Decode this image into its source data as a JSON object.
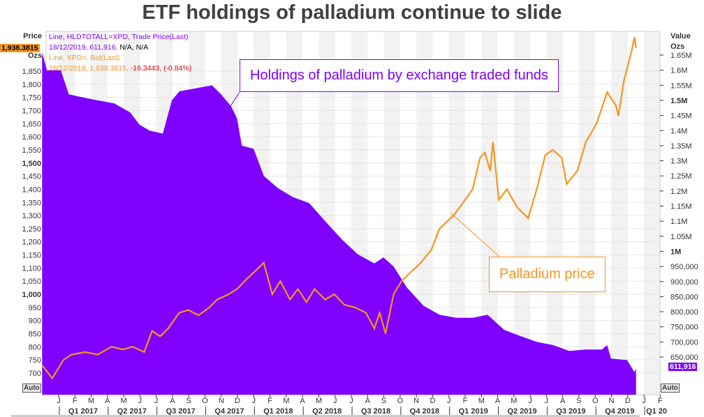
{
  "chart_data": {
    "type": "area+line",
    "title": "ETF holdings of palladium continue to slide",
    "left_axis": {
      "label": "Price",
      "unit": "Ozs",
      "range": [
        650,
        1950
      ],
      "ticks": [
        700,
        750,
        800,
        850,
        900,
        950,
        1000,
        1050,
        1100,
        1150,
        1200,
        1250,
        1300,
        1350,
        1400,
        1450,
        1500,
        1550,
        1600,
        1650,
        1700,
        1750,
        1800,
        1850
      ],
      "tick_labels": [
        "700",
        "750",
        "800",
        "850",
        "900",
        "950",
        "1,000",
        "1,050",
        "1,100",
        "1,150",
        "1,200",
        "1,250",
        "1,300",
        "1,350",
        "1,400",
        "1,450",
        "1,500",
        "1,550",
        "1,600",
        "1,650",
        "1,700",
        "1,750",
        "1,800",
        "1,850"
      ],
      "bold": [
        "1,000",
        "1,500"
      ]
    },
    "right_axis": {
      "label": "Value",
      "unit": "Ozs",
      "range": [
        540000,
        1720000
      ],
      "ticks": [
        650000,
        700000,
        750000,
        800000,
        850000,
        900000,
        950000,
        1000000,
        1050000,
        1100000,
        1150000,
        1200000,
        1250000,
        1300000,
        1350000,
        1400000,
        1450000,
        1500000,
        1550000,
        1600000,
        1650000
      ],
      "tick_labels": [
        "650,000",
        "700,000",
        "750,000",
        "800,000",
        "850,000",
        "900,000",
        "950,000",
        "1M",
        "1.05M",
        "1.1M",
        "1.15M",
        "1.2M",
        "1.25M",
        "1.3M",
        "1.35M",
        "1.4M",
        "1.45M",
        "1.5M",
        "1.55M",
        "1.6M",
        "1.65M"
      ],
      "bold": [
        "1M",
        "1.5M"
      ]
    },
    "months": [
      "J",
      "F",
      "M",
      "A",
      "M",
      "J",
      "J",
      "A",
      "S",
      "O",
      "N",
      "D",
      "J",
      "F",
      "M",
      "A",
      "M",
      "J",
      "J",
      "A",
      "S",
      "O",
      "N",
      "D",
      "J",
      "F",
      "M",
      "A",
      "M",
      "J",
      "J",
      "A",
      "S",
      "O",
      "N",
      "D",
      "J",
      "F"
    ],
    "quarters": [
      "Q1 2017",
      "Q2 2017",
      "Q3 2017",
      "Q4 2017",
      "Q1 2018",
      "Q2 2018",
      "Q3 2018",
      "Q4 2018",
      "Q1 2019",
      "Q2 2019",
      "Q3 2019",
      "Q4 2019",
      "Q1 20"
    ],
    "grid": true,
    "series": [
      {
        "name": "Line, HLDTOTALL=XPD, Trade Price(Last)",
        "type": "area",
        "axis": "right",
        "color": "#7f00ff",
        "points": [
          [
            "2016-12-01",
            1660000
          ],
          [
            "2016-12-10",
            1600000
          ],
          [
            "2017-01-05",
            1600000
          ],
          [
            "2017-01-20",
            1520000
          ],
          [
            "2017-02-15",
            1510000
          ],
          [
            "2017-03-15",
            1500000
          ],
          [
            "2017-04-15",
            1490000
          ],
          [
            "2017-05-15",
            1460000
          ],
          [
            "2017-06-01",
            1420000
          ],
          [
            "2017-06-20",
            1400000
          ],
          [
            "2017-07-15",
            1390000
          ],
          [
            "2017-08-01",
            1500000
          ],
          [
            "2017-08-15",
            1530000
          ],
          [
            "2017-09-15",
            1540000
          ],
          [
            "2017-10-15",
            1550000
          ],
          [
            "2017-11-01",
            1520000
          ],
          [
            "2017-11-20",
            1480000
          ],
          [
            "2017-12-01",
            1440000
          ],
          [
            "2017-12-10",
            1350000
          ],
          [
            "2018-01-01",
            1340000
          ],
          [
            "2018-01-20",
            1250000
          ],
          [
            "2018-02-15",
            1210000
          ],
          [
            "2018-03-15",
            1180000
          ],
          [
            "2018-04-15",
            1160000
          ],
          [
            "2018-05-15",
            1100000
          ],
          [
            "2018-06-15",
            1040000
          ],
          [
            "2018-07-15",
            990000
          ],
          [
            "2018-08-15",
            960000
          ],
          [
            "2018-09-01",
            980000
          ],
          [
            "2018-09-20",
            950000
          ],
          [
            "2018-10-15",
            880000
          ],
          [
            "2018-11-15",
            820000
          ],
          [
            "2018-12-15",
            790000
          ],
          [
            "2019-01-15",
            780000
          ],
          [
            "2019-02-15",
            780000
          ],
          [
            "2019-03-15",
            790000
          ],
          [
            "2019-04-15",
            740000
          ],
          [
            "2019-05-15",
            720000
          ],
          [
            "2019-06-15",
            700000
          ],
          [
            "2019-07-15",
            690000
          ],
          [
            "2019-08-15",
            670000
          ],
          [
            "2019-09-15",
            675000
          ],
          [
            "2019-10-15",
            675000
          ],
          [
            "2019-10-25",
            690000
          ],
          [
            "2019-11-01",
            645000
          ],
          [
            "2019-12-01",
            640000
          ],
          [
            "2019-12-15",
            600000
          ],
          [
            "2019-12-18",
            611916
          ]
        ]
      },
      {
        "name": "Line, XPD=, Bid(Last)",
        "type": "line",
        "axis": "left",
        "color": "#f7941d",
        "points": [
          [
            "2016-12-01",
            730
          ],
          [
            "2016-12-20",
            680
          ],
          [
            "2017-01-10",
            750
          ],
          [
            "2017-01-25",
            770
          ],
          [
            "2017-02-20",
            780
          ],
          [
            "2017-03-15",
            770
          ],
          [
            "2017-04-10",
            800
          ],
          [
            "2017-05-01",
            790
          ],
          [
            "2017-05-20",
            800
          ],
          [
            "2017-06-10",
            780
          ],
          [
            "2017-06-25",
            860
          ],
          [
            "2017-07-10",
            840
          ],
          [
            "2017-07-25",
            870
          ],
          [
            "2017-08-15",
            930
          ],
          [
            "2017-09-01",
            940
          ],
          [
            "2017-09-20",
            920
          ],
          [
            "2017-10-10",
            950
          ],
          [
            "2017-10-25",
            980
          ],
          [
            "2017-11-15",
            1000
          ],
          [
            "2017-12-01",
            1020
          ],
          [
            "2017-12-20",
            1060
          ],
          [
            "2018-01-10",
            1100
          ],
          [
            "2018-01-20",
            1120
          ],
          [
            "2018-02-05",
            1000
          ],
          [
            "2018-02-20",
            1050
          ],
          [
            "2018-03-10",
            980
          ],
          [
            "2018-03-25",
            1020
          ],
          [
            "2018-04-10",
            970
          ],
          [
            "2018-04-25",
            1020
          ],
          [
            "2018-05-15",
            980
          ],
          [
            "2018-06-01",
            1000
          ],
          [
            "2018-06-20",
            960
          ],
          [
            "2018-07-10",
            950
          ],
          [
            "2018-07-30",
            930
          ],
          [
            "2018-08-15",
            870
          ],
          [
            "2018-08-25",
            930
          ],
          [
            "2018-09-05",
            850
          ],
          [
            "2018-09-20",
            1000
          ],
          [
            "2018-10-05",
            1050
          ],
          [
            "2018-10-20",
            1080
          ],
          [
            "2018-11-10",
            1120
          ],
          [
            "2018-11-30",
            1170
          ],
          [
            "2018-12-15",
            1250
          ],
          [
            "2019-01-10",
            1300
          ],
          [
            "2019-01-25",
            1340
          ],
          [
            "2019-02-15",
            1400
          ],
          [
            "2019-03-01",
            1520
          ],
          [
            "2019-03-10",
            1540
          ],
          [
            "2019-03-20",
            1470
          ],
          [
            "2019-03-25",
            1580
          ],
          [
            "2019-04-05",
            1360
          ],
          [
            "2019-04-20",
            1400
          ],
          [
            "2019-05-10",
            1330
          ],
          [
            "2019-05-30",
            1290
          ],
          [
            "2019-06-15",
            1400
          ],
          [
            "2019-07-01",
            1530
          ],
          [
            "2019-07-15",
            1550
          ],
          [
            "2019-08-01",
            1520
          ],
          [
            "2019-08-10",
            1420
          ],
          [
            "2019-08-30",
            1470
          ],
          [
            "2019-09-15",
            1580
          ],
          [
            "2019-10-05",
            1650
          ],
          [
            "2019-10-25",
            1770
          ],
          [
            "2019-11-10",
            1720
          ],
          [
            "2019-11-15",
            1680
          ],
          [
            "2019-11-25",
            1810
          ],
          [
            "2019-12-10",
            1930
          ],
          [
            "2019-12-15",
            1980
          ],
          [
            "2019-12-18",
            1938.3815
          ]
        ]
      }
    ],
    "legend": {
      "line1": "Line, HLDTOTALL=XPD, Trade Price(Last)",
      "line1_values": "18/12/2019, 611,916,",
      "line1_na": "N/A, N/A",
      "line2": "Line, XPD=, Bid(Last)",
      "line2_values": "18/12/2019, 1,938.3815,",
      "line2_change": "-16.3443, (-0.84%)"
    },
    "last_price_tag": "1,938.3815",
    "last_value_tag": "611,916",
    "annotations": [
      "Holdings of palladium by exchange traded funds",
      "Palladium price"
    ],
    "auto_label": "Auto"
  }
}
